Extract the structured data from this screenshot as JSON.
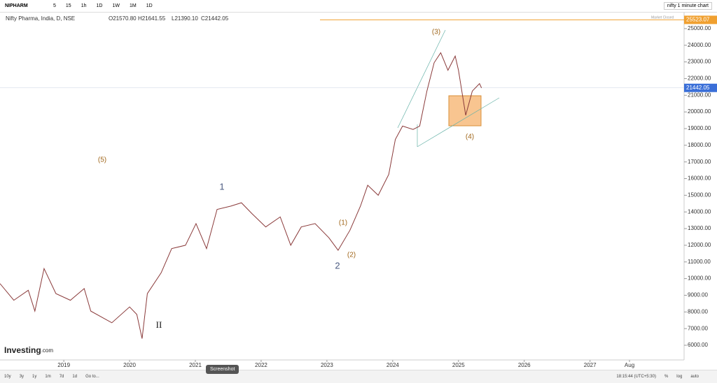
{
  "toolbar": {
    "symbol": "NIPHARM",
    "intervals": [
      "5",
      "15",
      "1h",
      "1D",
      "1W",
      "1M",
      "1D"
    ],
    "layout_name": "nifty 1 minute chart"
  },
  "legend": {
    "title": "Nifty Pharma, India, D, NSE",
    "open": "O21570.80",
    "high": "H21641.55",
    "low": "L21390.10",
    "close": "C21442.05"
  },
  "status": "Market Closed",
  "logo": "Investing",
  "logo_suffix": ".com",
  "chart_data": {
    "type": "line",
    "color": "#8a3a3a",
    "x": [
      2018.03,
      2018.24,
      2018.46,
      2018.56,
      2018.7,
      2018.88,
      2019.1,
      2019.31,
      2019.41,
      2019.73,
      2020.0,
      2020.11,
      2020.19,
      2020.27,
      2020.48,
      2020.64,
      2020.85,
      2021.01,
      2021.17,
      2021.33,
      2021.54,
      2021.7,
      2021.86,
      2022.07,
      2022.29,
      2022.45,
      2022.61,
      2022.82,
      2023.03,
      2023.17,
      2023.35,
      2023.51,
      2023.62,
      2023.78,
      2023.94,
      2024.04,
      2024.15,
      2024.31,
      2024.41,
      2024.52,
      2024.63,
      2024.73,
      2024.84,
      2024.95,
      2025.0,
      2025.11,
      2025.21,
      2025.32,
      2025.35
    ],
    "values": [
      9700,
      8700,
      9300,
      8050,
      10600,
      9100,
      8700,
      9400,
      8050,
      7350,
      8300,
      7850,
      6400,
      9100,
      10350,
      11800,
      12000,
      13300,
      11800,
      14150,
      14350,
      14550,
      13900,
      13100,
      13700,
      12000,
      13100,
      13300,
      12450,
      11700,
      12900,
      14350,
      15600,
      15000,
      16250,
      18350,
      19150,
      18950,
      19150,
      21250,
      22950,
      23550,
      22500,
      23350,
      22500,
      19800,
      21250,
      21700,
      21442.05
    ],
    "xlim": [
      2018.03,
      2028.43
    ],
    "ylim": [
      5120,
      25960
    ],
    "xticks": [
      2019,
      2020,
      2021,
      2022,
      2023,
      2024,
      2025,
      2026,
      2027,
      {
        "value": 2027.6,
        "label": "Aug"
      }
    ],
    "yticks": [
      {
        "value": 6000,
        "label": "6000.00"
      },
      {
        "value": 7000,
        "label": "7000.00"
      },
      {
        "value": 8000,
        "label": "8000.00"
      },
      {
        "value": 9000,
        "label": "9000.00"
      },
      {
        "value": 10000,
        "label": "10000.00"
      },
      {
        "value": 11000,
        "label": "11000.00"
      },
      {
        "value": 12000,
        "label": "12000.00"
      },
      {
        "value": 13000,
        "label": "13000.00"
      },
      {
        "value": 14000,
        "label": "14000.00"
      },
      {
        "value": 15000,
        "label": "15000.00"
      },
      {
        "value": 16000,
        "label": "16000.00"
      },
      {
        "value": 17000,
        "label": "17000.00"
      },
      {
        "value": 18000,
        "label": "18000.00"
      },
      {
        "value": 19000,
        "label": "19000.00"
      },
      {
        "value": 20000,
        "label": "20000.00"
      },
      {
        "value": 21000,
        "label": "21000.00"
      },
      {
        "value": 22000,
        "label": "22000.00"
      },
      {
        "value": 23000,
        "label": "23000.00"
      },
      {
        "value": 24000,
        "label": "24000.00"
      },
      {
        "value": 25000,
        "label": "25000.00"
      }
    ],
    "price_lines": [
      {
        "value": 25523.07,
        "label": "25523.07",
        "color": "#f0a030"
      },
      {
        "value": 21442.05,
        "label": "21442.05",
        "color": "#3a6fd8"
      }
    ],
    "annotations": [
      {
        "text": "(3)",
        "color": "#a0661a"
      },
      {
        "text": "(4)",
        "color": "#a0661a"
      },
      {
        "text": "(5)",
        "color": "#a0661a"
      },
      {
        "text": "(1)",
        "color": "#a0661a"
      },
      {
        "text": "(2)",
        "color": "#a0661a"
      },
      {
        "text": "1",
        "color": "#4a5a80"
      },
      {
        "text": "2",
        "color": "#4a5a80"
      },
      {
        "text": "II",
        "color": "#111111"
      }
    ]
  },
  "footer": {
    "ranges": [
      "10y",
      "3y",
      "1y",
      "1m",
      "7d",
      "1d",
      "Go to..."
    ],
    "screenshot": "Screenshot",
    "time": "18:15:44 (UTC+5:30)",
    "options": [
      "%",
      "log",
      "auto"
    ]
  }
}
